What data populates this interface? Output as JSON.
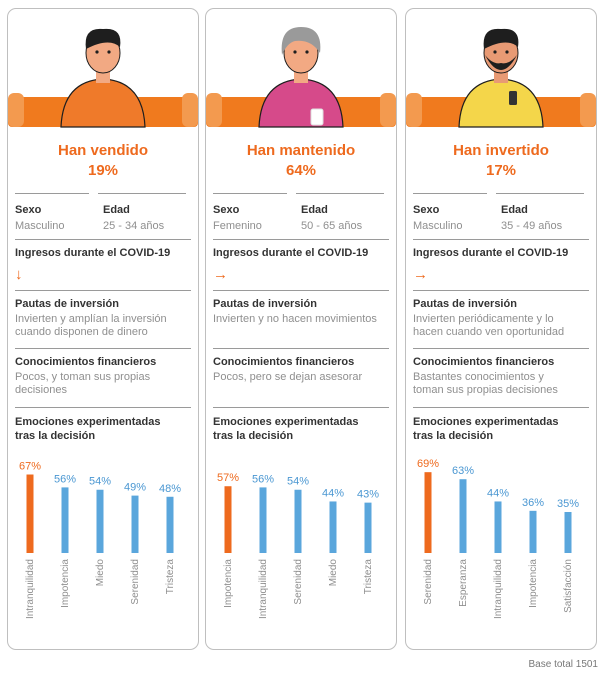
{
  "groups": [
    {
      "title": "Han vendido",
      "percentage": "19%",
      "sexo_label": "Sexo",
      "sexo_value": "Masculino",
      "edad_label": "Edad",
      "edad_value": "25 - 34 años",
      "ingresos_label": "Ingresos durante el COVID-19",
      "ingresos_icon": "arrow-down-icon",
      "ingresos_glyph": "↓",
      "pautas_label": "Pautas de inversión",
      "pautas_value": "Invierten y amplían la inversión cuando disponen de dinero",
      "conocimientos_label": "Conocimientos financieros",
      "conocimientos_value": "Pocos, y toman sus propias decisiones",
      "emociones_label": "Emociones experimentadas tras la decisión",
      "person": {
        "hair": "#1e1e1e",
        "shirt": "#ef7a2a",
        "skin": "#f2a983"
      }
    },
    {
      "title": "Han mantenido",
      "percentage": "64%",
      "sexo_label": "Sexo",
      "sexo_value": "Femenino",
      "edad_label": "Edad",
      "edad_value": "50 - 65 años",
      "ingresos_label": "Ingresos durante el COVID-19",
      "ingresos_icon": "arrow-right-icon",
      "ingresos_glyph": "→",
      "pautas_label": "Pautas de inversión",
      "pautas_value": "Invierten y no hacen movimientos",
      "conocimientos_label": "Conocimientos financieros",
      "conocimientos_value": "Pocos, pero se dejan asesorar",
      "emociones_label": "Emociones experimentadas tras la decisión",
      "person": {
        "hair": "#9a9a9a",
        "shirt": "#d64a8a",
        "skin": "#f2a983"
      }
    },
    {
      "title": "Han invertido",
      "percentage": "17%",
      "sexo_label": "Sexo",
      "sexo_value": "Masculino",
      "edad_label": "Edad",
      "edad_value": "35 - 49 años",
      "ingresos_label": "Ingresos durante el COVID-19",
      "ingresos_icon": "arrow-right-icon",
      "ingresos_glyph": "→",
      "pautas_label": "Pautas de inversión",
      "pautas_value": "Invierten periódicamente y lo hacen cuando ven oportunidad",
      "conocimientos_label": "Conocimientos financieros",
      "conocimientos_value": "Bastantes conocimientos y toman sus propias decisiones",
      "emociones_label": "Emociones experimentadas tras la decisión",
      "person": {
        "hair": "#1e1e1e",
        "shirt": "#f4d64a",
        "skin": "#e89a74"
      }
    }
  ],
  "chart_data": [
    {
      "type": "bar",
      "categories": [
        "Intranquilidad",
        "Impotencia",
        "Miedo",
        "Serenidad",
        "Tristeza"
      ],
      "values": [
        67,
        56,
        54,
        49,
        48
      ],
      "value_labels": [
        "67%",
        "56%",
        "54%",
        "49%",
        "48%"
      ],
      "highlight_index": 0,
      "ylim": [
        0,
        70
      ]
    },
    {
      "type": "bar",
      "categories": [
        "Impotencia",
        "Intranquilidad",
        "Serenidad",
        "Miedo",
        "Tristeza"
      ],
      "values": [
        57,
        56,
        54,
        44,
        43
      ],
      "value_labels": [
        "57%",
        "56%",
        "54%",
        "44%",
        "43%"
      ],
      "highlight_index": 0,
      "ylim": [
        0,
        70
      ]
    },
    {
      "type": "bar",
      "categories": [
        "Serenidad",
        "Esperanza",
        "Intranquilidad",
        "Impotencia",
        "Satisfacción"
      ],
      "values": [
        69,
        63,
        44,
        36,
        35
      ],
      "value_labels": [
        "69%",
        "63%",
        "44%",
        "36%",
        "35%"
      ],
      "highlight_index": 0,
      "ylim": [
        0,
        70
      ]
    }
  ],
  "colors": {
    "orange": "#ee6a1e",
    "blue": "#5aa6dc",
    "orange_text": "#ee6a1e",
    "blue_text": "#4a97d2",
    "rule": "#9a9a9a",
    "muted": "#8f8f8f",
    "sofa": "#f07a1e"
  },
  "footer": {
    "base": "Base total 1501"
  }
}
